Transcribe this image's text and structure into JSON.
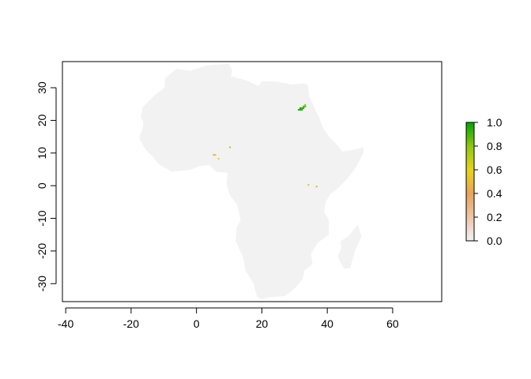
{
  "chart_data": {
    "type": "heatmap",
    "title": "",
    "xlabel": "",
    "ylabel": "",
    "xlim": [
      -41,
      75
    ],
    "ylim": [
      -35.5,
      38
    ],
    "x_ticks": [
      -40,
      -20,
      0,
      20,
      40,
      60
    ],
    "y_ticks": [
      -30,
      -20,
      -10,
      0,
      10,
      20,
      30
    ],
    "x_tick_labels": [
      "-40",
      "-20",
      "0",
      "20",
      "40",
      "60"
    ],
    "y_tick_labels": [
      "-30",
      "-20",
      "-10",
      "0",
      "10",
      "20",
      "30"
    ],
    "background_value": 0.0,
    "background_color": "#f2f2f2",
    "grid": false,
    "legend": {
      "placement": "right",
      "min": 0.0,
      "max": 1.0,
      "tick_values": [
        0.0,
        0.2,
        0.4,
        0.6,
        0.8,
        1.0
      ],
      "tick_labels": [
        "0.0",
        "0.2",
        "0.4",
        "0.6",
        "0.8",
        "1.0"
      ],
      "colors": [
        "#f2f2f2",
        "#eec6a8",
        "#e9a457",
        "#e6d41a",
        "#8fc80f",
        "#00a600"
      ]
    },
    "land_outline": [
      [
        -17.0,
        21.0
      ],
      [
        -16.5,
        24.0
      ],
      [
        -13.0,
        27.5
      ],
      [
        -9.8,
        30.0
      ],
      [
        -9.5,
        33.0
      ],
      [
        -6.0,
        35.8
      ],
      [
        -2.0,
        35.2
      ],
      [
        3.0,
        36.8
      ],
      [
        10.0,
        37.3
      ],
      [
        11.0,
        35.0
      ],
      [
        10.5,
        33.5
      ],
      [
        15.0,
        32.3
      ],
      [
        19.0,
        30.5
      ],
      [
        20.0,
        32.0
      ],
      [
        25.0,
        31.8
      ],
      [
        29.0,
        31.0
      ],
      [
        32.5,
        31.3
      ],
      [
        34.0,
        31.0
      ],
      [
        34.5,
        27.5
      ],
      [
        36.0,
        24.0
      ],
      [
        37.5,
        21.0
      ],
      [
        38.5,
        18.0
      ],
      [
        40.5,
        15.0
      ],
      [
        43.0,
        12.5
      ],
      [
        44.5,
        10.5
      ],
      [
        48.0,
        11.0
      ],
      [
        51.2,
        11.8
      ],
      [
        51.0,
        10.0
      ],
      [
        49.0,
        6.0
      ],
      [
        46.0,
        2.0
      ],
      [
        43.0,
        -1.0
      ],
      [
        41.0,
        -2.5
      ],
      [
        39.5,
        -5.0
      ],
      [
        39.0,
        -8.0
      ],
      [
        40.5,
        -10.5
      ],
      [
        40.5,
        -15.0
      ],
      [
        37.0,
        -17.5
      ],
      [
        35.0,
        -21.0
      ],
      [
        35.5,
        -24.0
      ],
      [
        33.0,
        -26.0
      ],
      [
        32.5,
        -28.5
      ],
      [
        30.0,
        -31.5
      ],
      [
        27.0,
        -33.8
      ],
      [
        22.0,
        -34.2
      ],
      [
        20.0,
        -34.8
      ],
      [
        18.5,
        -34.0
      ],
      [
        17.5,
        -30.0
      ],
      [
        15.0,
        -26.0
      ],
      [
        14.3,
        -22.0
      ],
      [
        12.0,
        -17.0
      ],
      [
        12.2,
        -13.0
      ],
      [
        13.5,
        -10.5
      ],
      [
        12.5,
        -6.0
      ],
      [
        10.0,
        -2.5
      ],
      [
        9.2,
        0.5
      ],
      [
        9.5,
        4.0
      ],
      [
        6.0,
        4.2
      ],
      [
        4.0,
        6.3
      ],
      [
        1.0,
        6.0
      ],
      [
        -2.0,
        4.8
      ],
      [
        -7.5,
        4.3
      ],
      [
        -11.5,
        6.5
      ],
      [
        -13.5,
        9.0
      ],
      [
        -15.5,
        11.0
      ],
      [
        -17.5,
        14.5
      ],
      [
        -16.5,
        17.5
      ],
      [
        -16.2,
        19.5
      ]
    ],
    "madagascar_outline": [
      [
        49.3,
        -12.0
      ],
      [
        50.5,
        -15.5
      ],
      [
        49.8,
        -17.0
      ],
      [
        48.5,
        -20.0
      ],
      [
        47.5,
        -23.5
      ],
      [
        47.0,
        -25.2
      ],
      [
        45.2,
        -25.5
      ],
      [
        43.7,
        -23.0
      ],
      [
        43.3,
        -21.5
      ],
      [
        44.3,
        -19.0
      ],
      [
        44.0,
        -17.0
      ],
      [
        46.5,
        -15.5
      ],
      [
        48.0,
        -13.5
      ]
    ],
    "highlighted_cells": [
      {
        "x": 31.0,
        "y": 23.0,
        "value": 0.95
      },
      {
        "x": 31.5,
        "y": 23.0,
        "value": 0.95
      },
      {
        "x": 32.0,
        "y": 23.0,
        "value": 0.95
      },
      {
        "x": 31.5,
        "y": 23.5,
        "value": 0.95
      },
      {
        "x": 32.0,
        "y": 23.5,
        "value": 0.95
      },
      {
        "x": 32.5,
        "y": 23.5,
        "value": 0.95
      },
      {
        "x": 32.5,
        "y": 24.0,
        "value": 0.9
      },
      {
        "x": 33.0,
        "y": 24.0,
        "value": 0.9
      },
      {
        "x": 33.0,
        "y": 24.5,
        "value": 0.8
      },
      {
        "x": 5.0,
        "y": 9.2,
        "value": 0.5
      },
      {
        "x": 5.5,
        "y": 9.2,
        "value": 0.5
      },
      {
        "x": 6.5,
        "y": 8.0,
        "value": 0.6
      },
      {
        "x": 10.0,
        "y": 11.5,
        "value": 0.7
      },
      {
        "x": 34.0,
        "y": 0.0,
        "value": 0.55
      },
      {
        "x": 36.5,
        "y": -0.5,
        "value": 0.45
      }
    ]
  }
}
